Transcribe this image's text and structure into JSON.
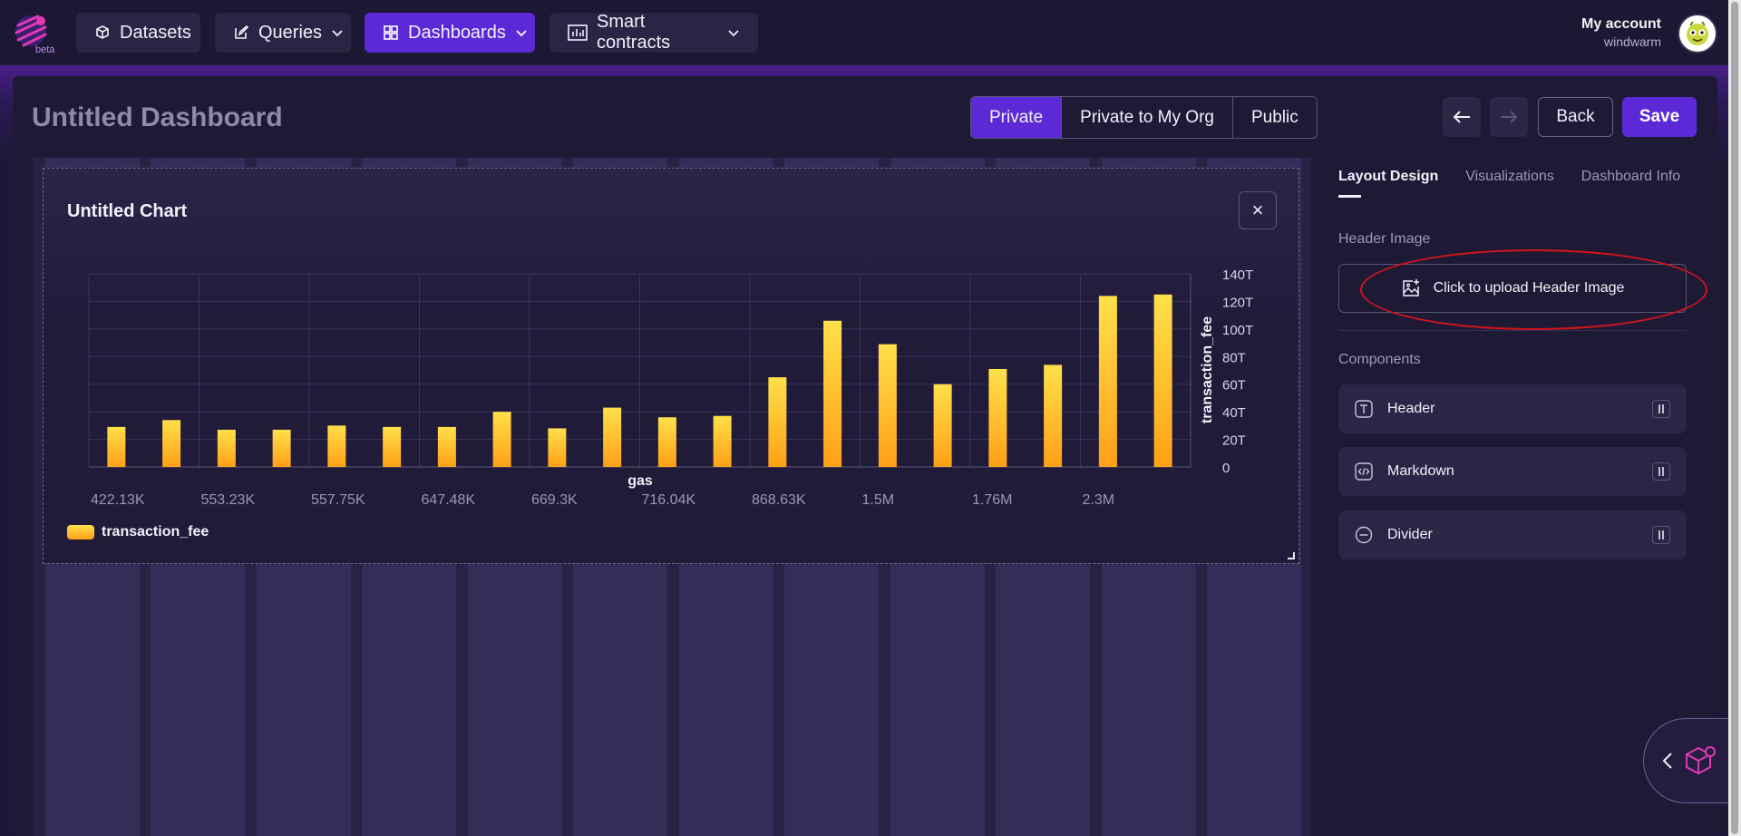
{
  "nav": {
    "items": [
      {
        "label": "Datasets",
        "icon": "cube-icon"
      },
      {
        "label": "Queries",
        "icon": "edit-icon"
      },
      {
        "label": "Dashboards",
        "icon": "grid-icon"
      },
      {
        "label": "Smart contracts",
        "icon": "bar-chart-icon"
      }
    ],
    "account_label": "My account",
    "account_user": "windwarm",
    "logo_badge": "beta"
  },
  "dashboard": {
    "title": "Untitled Dashboard",
    "visibility": [
      "Private",
      "Private to My Org",
      "Public"
    ],
    "visibility_selected": "Private",
    "back_label": "Back",
    "save_label": "Save"
  },
  "chart_card": {
    "title": "Untitled Chart",
    "close_symbol": "×"
  },
  "chart_data": {
    "type": "bar",
    "xlabel": "gas",
    "ylabel": "transaction_fee",
    "y_ticks": [
      "0",
      "20T",
      "40T",
      "60T",
      "80T",
      "100T",
      "120T",
      "140T"
    ],
    "ylim": [
      0,
      140
    ],
    "y_unit": "T",
    "x_tick_labels": [
      "422.13K",
      "553.23K",
      "557.75K",
      "647.48K",
      "669.3K",
      "716.04K",
      "868.63K",
      "1.5M",
      "1.76M",
      "2.3M"
    ],
    "series": [
      {
        "name": "transaction_fee",
        "values": [
          29,
          34,
          27,
          27,
          30,
          29,
          29,
          40,
          28,
          43,
          36,
          37,
          65,
          106,
          89,
          60,
          71,
          74,
          124,
          125
        ]
      }
    ],
    "legend_position": "bottom-left",
    "grid": true
  },
  "sidebar": {
    "tabs": [
      "Layout Design",
      "Visualizations",
      "Dashboard Info"
    ],
    "active_tab": "Layout Design",
    "header_image_label": "Header Image",
    "upload_label": "Click to upload Header Image",
    "components_label": "Components",
    "components": [
      {
        "label": "Header",
        "icon": "text-icon"
      },
      {
        "label": "Markdown",
        "icon": "code-icon"
      },
      {
        "label": "Divider",
        "icon": "minus-icon"
      }
    ]
  },
  "colors": {
    "accent": "#5b2ad6",
    "bar_top": "#ffe04a",
    "bar_bottom": "#ffa016",
    "annotation": "#d4141a"
  }
}
